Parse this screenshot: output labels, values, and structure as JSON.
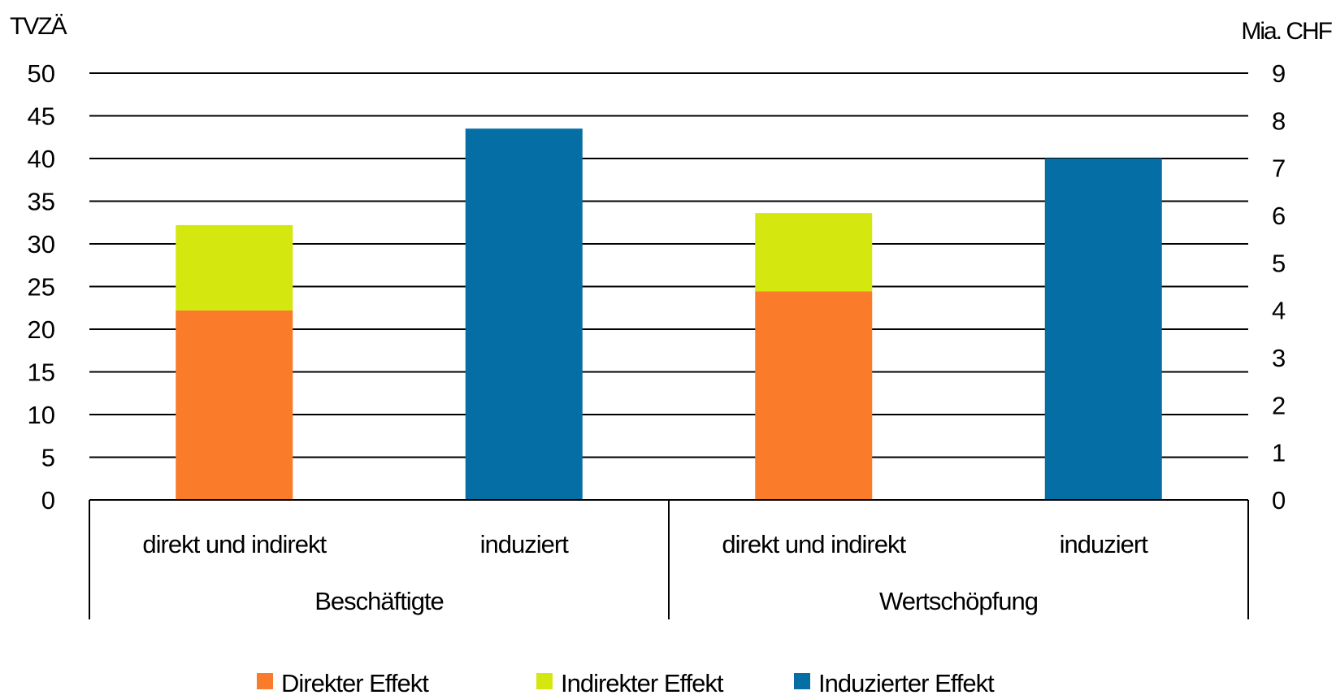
{
  "chart_data": {
    "type": "bar",
    "stacked": true,
    "left_axis": {
      "label": "TVZÄ",
      "ylim": [
        0,
        50
      ],
      "ticks": [
        "0",
        "5",
        "10",
        "15",
        "20",
        "25",
        "30",
        "35",
        "40",
        "45",
        "50"
      ]
    },
    "right_axis": {
      "label": "Mia. CHF",
      "ylim": [
        0,
        9
      ],
      "ticks": [
        "0",
        "1",
        "2",
        "3",
        "4",
        "5",
        "6",
        "7",
        "8",
        "9"
      ]
    },
    "groups": [
      {
        "label": "Beschäftigte",
        "axis": "left",
        "categories": [
          "direkt und indirekt",
          "induziert"
        ]
      },
      {
        "label": "Wertschöpfung",
        "axis": "right",
        "categories": [
          "direkt und indirekt",
          "induziert"
        ]
      }
    ],
    "categories": [
      "direkt und indirekt",
      "induziert",
      "direkt und indirekt",
      "induziert"
    ],
    "category_axis": [
      "left",
      "left",
      "right",
      "right"
    ],
    "series": [
      {
        "name": "Direkter Effekt",
        "color": "#FA7B29",
        "values": [
          22.2,
          0,
          4.4,
          0
        ]
      },
      {
        "name": "Indirekter Effekt",
        "color": "#D4E810",
        "values": [
          10.0,
          0,
          1.65,
          0
        ]
      },
      {
        "name": "Induzierter Effekt",
        "color": "#046EA5",
        "values": [
          0,
          43.5,
          0,
          7.2
        ]
      }
    ],
    "grid": true,
    "legend_position": "bottom"
  }
}
